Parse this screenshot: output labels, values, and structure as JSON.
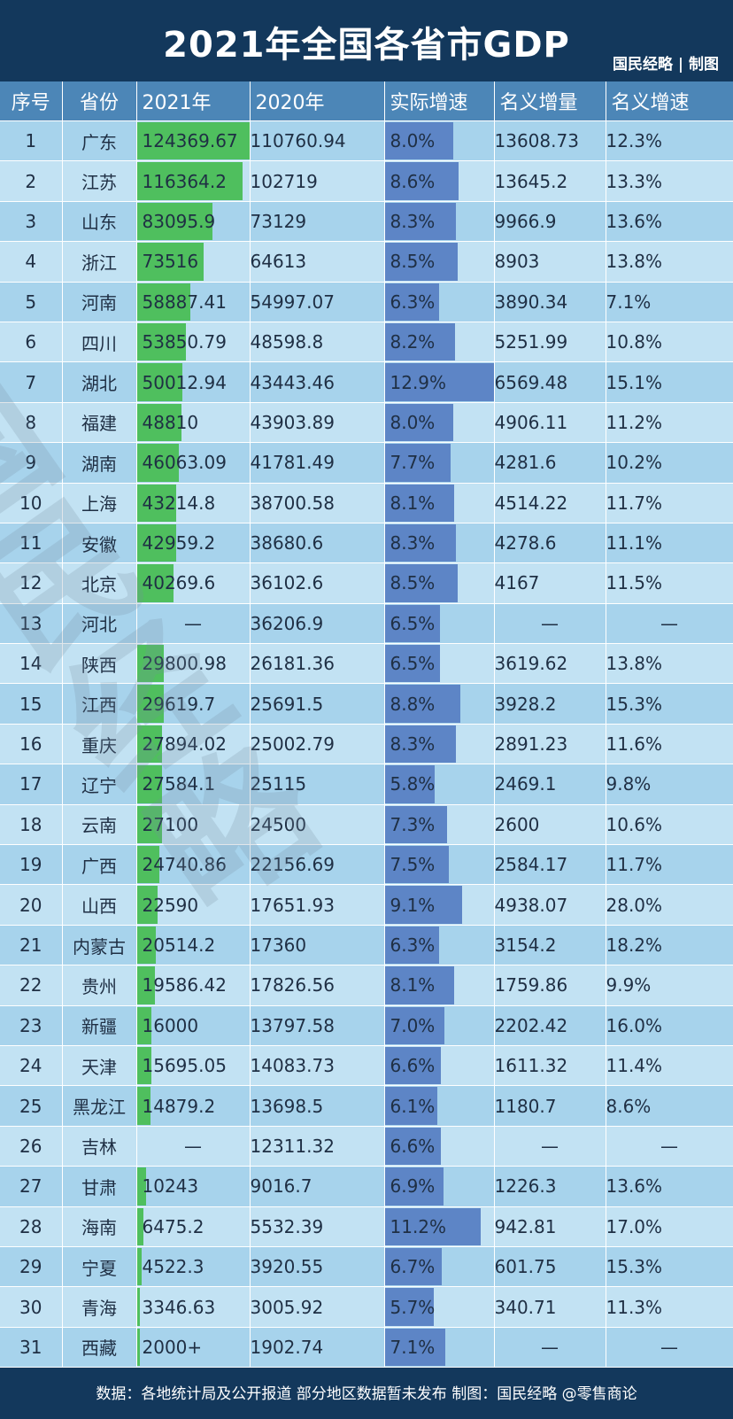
{
  "title": "2021年全国各省市GDP",
  "credit": "国民经略 | 制图",
  "footer": "数据：各地统计局及公开报道 部分地区数据暂未发布 制图：国民经略 @零售商论",
  "colors": {
    "header_bg": "#13385c",
    "col_header_bg": "#4c86b7",
    "green_bar": "#4fbf5e",
    "blue_bar": "#5d85c6"
  },
  "chart_data": {
    "type": "table",
    "title": "2021年全国各省市GDP",
    "columns": [
      "序号",
      "省份",
      "2021年",
      "2020年",
      "实际增速",
      "名义增量",
      "名义增速"
    ],
    "bar_columns": {
      "2021年": "green",
      "实际增速": "blue"
    },
    "rows": [
      {
        "rank": "1",
        "province": "广东",
        "y2021": "124369.67",
        "y2020": "110760.94",
        "real": "8.0%",
        "nominc": "13608.73",
        "nomrate": "12.3%"
      },
      {
        "rank": "2",
        "province": "江苏",
        "y2021": "116364.2",
        "y2020": "102719",
        "real": "8.6%",
        "nominc": "13645.2",
        "nomrate": "13.3%"
      },
      {
        "rank": "3",
        "province": "山东",
        "y2021": "83095.9",
        "y2020": "73129",
        "real": "8.3%",
        "nominc": "9966.9",
        "nomrate": "13.6%"
      },
      {
        "rank": "4",
        "province": "浙江",
        "y2021": "73516",
        "y2020": "64613",
        "real": "8.5%",
        "nominc": "8903",
        "nomrate": "13.8%"
      },
      {
        "rank": "5",
        "province": "河南",
        "y2021": "58887.41",
        "y2020": "54997.07",
        "real": "6.3%",
        "nominc": "3890.34",
        "nomrate": "7.1%"
      },
      {
        "rank": "6",
        "province": "四川",
        "y2021": "53850.79",
        "y2020": "48598.8",
        "real": "8.2%",
        "nominc": "5251.99",
        "nomrate": "10.8%"
      },
      {
        "rank": "7",
        "province": "湖北",
        "y2021": "50012.94",
        "y2020": "43443.46",
        "real": "12.9%",
        "nominc": "6569.48",
        "nomrate": "15.1%"
      },
      {
        "rank": "8",
        "province": "福建",
        "y2021": "48810",
        "y2020": "43903.89",
        "real": "8.0%",
        "nominc": "4906.11",
        "nomrate": "11.2%"
      },
      {
        "rank": "9",
        "province": "湖南",
        "y2021": "46063.09",
        "y2020": "41781.49",
        "real": "7.7%",
        "nominc": "4281.6",
        "nomrate": "10.2%"
      },
      {
        "rank": "10",
        "province": "上海",
        "y2021": "43214.8",
        "y2020": "38700.58",
        "real": "8.1%",
        "nominc": "4514.22",
        "nomrate": "11.7%"
      },
      {
        "rank": "11",
        "province": "安徽",
        "y2021": "42959.2",
        "y2020": "38680.6",
        "real": "8.3%",
        "nominc": "4278.6",
        "nomrate": "11.1%"
      },
      {
        "rank": "12",
        "province": "北京",
        "y2021": "40269.6",
        "y2020": "36102.6",
        "real": "8.5%",
        "nominc": "4167",
        "nomrate": "11.5%"
      },
      {
        "rank": "13",
        "province": "河北",
        "y2021": "—",
        "y2020": "36206.9",
        "real": "6.5%",
        "nominc": "—",
        "nomrate": "—"
      },
      {
        "rank": "14",
        "province": "陕西",
        "y2021": "29800.98",
        "y2020": "26181.36",
        "real": "6.5%",
        "nominc": "3619.62",
        "nomrate": "13.8%"
      },
      {
        "rank": "15",
        "province": "江西",
        "y2021": "29619.7",
        "y2020": "25691.5",
        "real": "8.8%",
        "nominc": "3928.2",
        "nomrate": "15.3%"
      },
      {
        "rank": "16",
        "province": "重庆",
        "y2021": "27894.02",
        "y2020": "25002.79",
        "real": "8.3%",
        "nominc": "2891.23",
        "nomrate": "11.6%"
      },
      {
        "rank": "17",
        "province": "辽宁",
        "y2021": "27584.1",
        "y2020": "25115",
        "real": "5.8%",
        "nominc": "2469.1",
        "nomrate": "9.8%"
      },
      {
        "rank": "18",
        "province": "云南",
        "y2021": "27100",
        "y2020": "24500",
        "real": "7.3%",
        "nominc": "2600",
        "nomrate": "10.6%"
      },
      {
        "rank": "19",
        "province": "广西",
        "y2021": "24740.86",
        "y2020": "22156.69",
        "real": "7.5%",
        "nominc": "2584.17",
        "nomrate": "11.7%"
      },
      {
        "rank": "20",
        "province": "山西",
        "y2021": "22590",
        "y2020": "17651.93",
        "real": "9.1%",
        "nominc": "4938.07",
        "nomrate": "28.0%"
      },
      {
        "rank": "21",
        "province": "内蒙古",
        "y2021": "20514.2",
        "y2020": "17360",
        "real": "6.3%",
        "nominc": "3154.2",
        "nomrate": "18.2%"
      },
      {
        "rank": "22",
        "province": "贵州",
        "y2021": "19586.42",
        "y2020": "17826.56",
        "real": "8.1%",
        "nominc": "1759.86",
        "nomrate": "9.9%"
      },
      {
        "rank": "23",
        "province": "新疆",
        "y2021": "16000",
        "y2020": "13797.58",
        "real": "7.0%",
        "nominc": "2202.42",
        "nomrate": "16.0%"
      },
      {
        "rank": "24",
        "province": "天津",
        "y2021": "15695.05",
        "y2020": "14083.73",
        "real": "6.6%",
        "nominc": "1611.32",
        "nomrate": "11.4%"
      },
      {
        "rank": "25",
        "province": "黑龙江",
        "y2021": "14879.2",
        "y2020": "13698.5",
        "real": "6.1%",
        "nominc": "1180.7",
        "nomrate": "8.6%"
      },
      {
        "rank": "26",
        "province": "吉林",
        "y2021": "—",
        "y2020": "12311.32",
        "real": "6.6%",
        "nominc": "—",
        "nomrate": "—"
      },
      {
        "rank": "27",
        "province": "甘肃",
        "y2021": "10243",
        "y2020": "9016.7",
        "real": "6.9%",
        "nominc": "1226.3",
        "nomrate": "13.6%"
      },
      {
        "rank": "28",
        "province": "海南",
        "y2021": "6475.2",
        "y2020": "5532.39",
        "real": "11.2%",
        "nominc": "942.81",
        "nomrate": "17.0%"
      },
      {
        "rank": "29",
        "province": "宁夏",
        "y2021": "4522.3",
        "y2020": "3920.55",
        "real": "6.7%",
        "nominc": "601.75",
        "nomrate": "15.3%"
      },
      {
        "rank": "30",
        "province": "青海",
        "y2021": "3346.63",
        "y2020": "3005.92",
        "real": "5.7%",
        "nominc": "340.71",
        "nomrate": "11.3%"
      },
      {
        "rank": "31",
        "province": "西藏",
        "y2021": "2000+",
        "y2020": "1902.74",
        "real": "7.1%",
        "nominc": "—",
        "nomrate": "—"
      }
    ]
  }
}
